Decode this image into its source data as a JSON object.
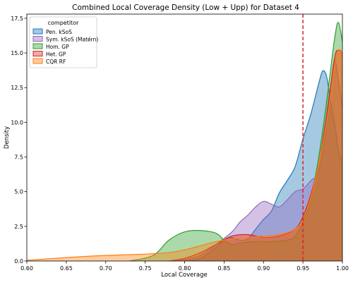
{
  "chart_data": {
    "type": "area",
    "title": "Combined Local Coverage Density (Low + Upp) for Dataset 4",
    "xlabel": "Local Coverage",
    "ylabel": "Density",
    "xlim": [
      0.6,
      1.0
    ],
    "ylim": [
      0,
      17.8
    ],
    "x_ticks": [
      0.6,
      0.65,
      0.7,
      0.75,
      0.8,
      0.85,
      0.9,
      0.95,
      1.0
    ],
    "x_tick_labels": [
      "0.60",
      "0.65",
      "0.70",
      "0.75",
      "0.80",
      "0.85",
      "0.90",
      "0.95",
      "1.00"
    ],
    "y_ticks": [
      0,
      2.5,
      5.0,
      7.5,
      10.0,
      12.5,
      15.0,
      17.5
    ],
    "y_tick_labels": [
      "0.0",
      "2.5",
      "5.0",
      "7.5",
      "10.0",
      "12.5",
      "15.0",
      "17.5"
    ],
    "grid": false,
    "legend": {
      "title": "competitor",
      "placement": "top-left"
    },
    "reference_line": {
      "x": 0.95,
      "color": "#d62728",
      "style": "dashed"
    },
    "series": [
      {
        "name": "Pen. kSoS",
        "color": "#1f77b4",
        "x": [
          0.8,
          0.82,
          0.84,
          0.855,
          0.87,
          0.88,
          0.89,
          0.9,
          0.91,
          0.92,
          0.93,
          0.94,
          0.95,
          0.96,
          0.97,
          0.975,
          0.98,
          0.985,
          0.99,
          0.995,
          1.0
        ],
        "values": [
          0.0,
          0.2,
          1.0,
          1.7,
          1.5,
          1.6,
          2.3,
          3.0,
          3.6,
          4.9,
          5.8,
          6.8,
          8.8,
          10.6,
          12.8,
          13.7,
          13.3,
          11.5,
          10.0,
          8.0,
          7.0
        ]
      },
      {
        "name": "Sym. kSoS (Matérn)",
        "color": "#9467bd",
        "x": [
          0.78,
          0.8,
          0.82,
          0.84,
          0.86,
          0.87,
          0.88,
          0.89,
          0.9,
          0.91,
          0.92,
          0.93,
          0.94,
          0.95,
          0.96,
          0.97,
          0.98,
          0.985,
          0.99,
          0.995,
          1.0
        ],
        "values": [
          0.0,
          0.1,
          0.4,
          1.2,
          2.1,
          2.8,
          3.3,
          3.9,
          4.3,
          4.1,
          3.9,
          4.4,
          5.0,
          5.2,
          5.8,
          6.5,
          9.8,
          12.5,
          14.5,
          13.0,
          11.0
        ]
      },
      {
        "name": "Hom. GP",
        "color": "#2ca02c",
        "x": [
          0.73,
          0.76,
          0.78,
          0.8,
          0.82,
          0.84,
          0.85,
          0.86,
          0.87,
          0.89,
          0.91,
          0.93,
          0.94,
          0.95,
          0.96,
          0.97,
          0.98,
          0.99,
          0.995,
          1.0
        ],
        "values": [
          0.0,
          0.4,
          1.5,
          2.1,
          2.2,
          2.0,
          1.5,
          1.2,
          1.3,
          1.4,
          1.4,
          1.5,
          1.8,
          2.8,
          4.5,
          7.5,
          11.5,
          16.0,
          17.2,
          15.8
        ]
      },
      {
        "name": "Het. GP",
        "color": "#d62728",
        "x": [
          0.78,
          0.8,
          0.82,
          0.84,
          0.86,
          0.88,
          0.9,
          0.92,
          0.94,
          0.95,
          0.96,
          0.97,
          0.98,
          0.99,
          0.995,
          1.0
        ],
        "values": [
          0.0,
          0.2,
          0.6,
          1.2,
          1.8,
          1.9,
          1.7,
          1.8,
          2.3,
          3.2,
          4.8,
          7.0,
          10.5,
          14.6,
          15.2,
          15.0
        ]
      },
      {
        "name": "CQR RF",
        "color": "#ff7f0e",
        "x": [
          0.6,
          0.65,
          0.68,
          0.7,
          0.75,
          0.78,
          0.8,
          0.82,
          0.84,
          0.86,
          0.88,
          0.9,
          0.92,
          0.94,
          0.95,
          0.96,
          0.97,
          0.98,
          0.99,
          0.995,
          1.0
        ],
        "values": [
          0.05,
          0.25,
          0.35,
          0.4,
          0.5,
          0.6,
          0.8,
          1.1,
          1.4,
          1.6,
          1.7,
          1.8,
          1.9,
          2.3,
          3.0,
          4.6,
          7.0,
          10.0,
          14.0,
          15.2,
          15.0
        ]
      }
    ]
  }
}
